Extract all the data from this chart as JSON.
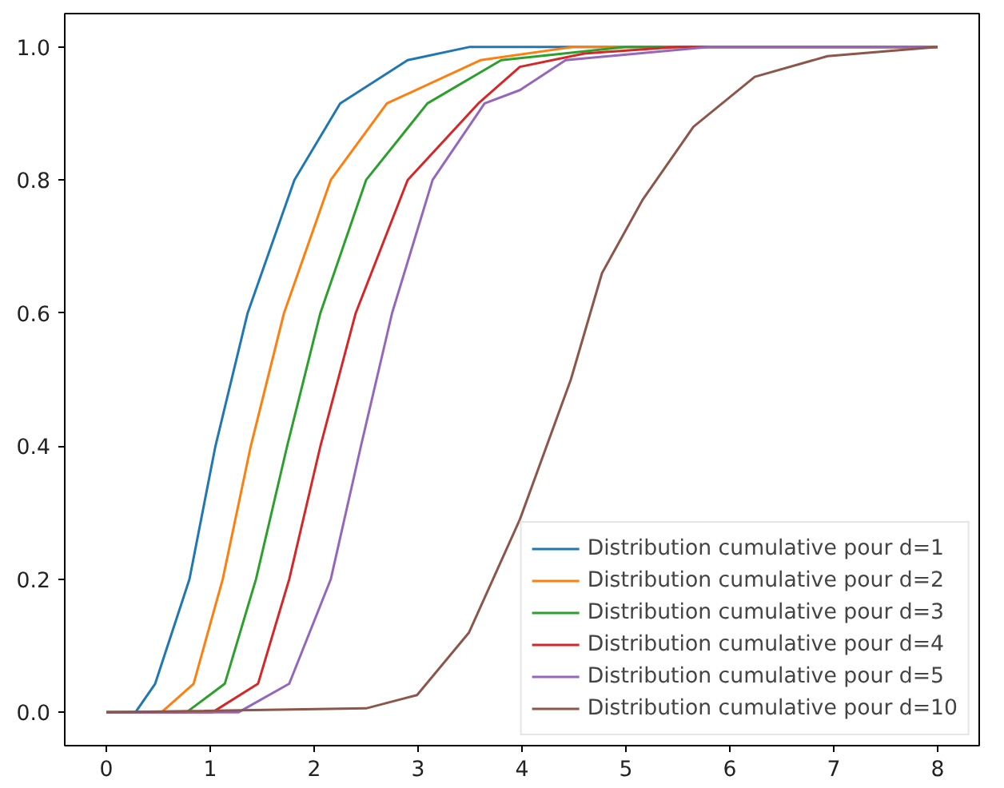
{
  "chart_data": {
    "type": "line",
    "xlim": [
      -0.4,
      8.4
    ],
    "ylim": [
      -0.05,
      1.05
    ],
    "xticks": [
      0,
      1,
      2,
      3,
      4,
      5,
      6,
      7,
      8
    ],
    "yticks": [
      {
        "value": 0,
        "label": "0.0"
      },
      {
        "value": 0.2,
        "label": "0.2"
      },
      {
        "value": 0.4,
        "label": "0.4"
      },
      {
        "value": 0.6,
        "label": "0.6"
      },
      {
        "value": 0.8,
        "label": "0.8"
      },
      {
        "value": 1.0,
        "label": "1.0"
      }
    ],
    "grid": false,
    "legend": "bottom right",
    "line_style": "solid",
    "series": [
      {
        "name": "Distribution cumulative pour d=1",
        "color": "#1f77b4",
        "x": [
          0,
          0.28,
          0.47,
          0.8,
          1.05,
          1.36,
          1.81,
          2.25,
          2.9,
          3.5,
          8
        ],
        "values": [
          0,
          0,
          0.043,
          0.2,
          0.4,
          0.6,
          0.8,
          0.915,
          0.98,
          1.0,
          1.0
        ]
      },
      {
        "name": "Distribution cumulative pour d=2",
        "color": "#ff7f0e",
        "x": [
          0,
          0.53,
          0.84,
          1.12,
          1.39,
          1.71,
          2.16,
          2.7,
          3.6,
          4.5,
          8
        ],
        "values": [
          0,
          0,
          0.043,
          0.2,
          0.4,
          0.6,
          0.8,
          0.915,
          0.98,
          1.0,
          1.0
        ]
      },
      {
        "name": "Distribution cumulative pour d=3",
        "color": "#2ca02c",
        "x": [
          0,
          0.77,
          1.14,
          1.44,
          1.74,
          2.06,
          2.5,
          3.09,
          3.8,
          5.0,
          8
        ],
        "values": [
          0,
          0,
          0.043,
          0.2,
          0.4,
          0.6,
          0.8,
          0.915,
          0.98,
          1.0,
          1.0
        ]
      },
      {
        "name": "Distribution cumulative pour d=4",
        "color": "#d62728",
        "x": [
          0,
          1.02,
          1.46,
          1.76,
          2.06,
          2.4,
          2.9,
          3.58,
          3.98,
          4.6,
          5.5,
          8
        ],
        "values": [
          0,
          0,
          0.043,
          0.2,
          0.4,
          0.6,
          0.8,
          0.915,
          0.97,
          0.99,
          1.0,
          1.0
        ]
      },
      {
        "name": "Distribution cumulative pour d=5",
        "color": "#9467bd",
        "x": [
          0,
          1.27,
          1.76,
          2.16,
          2.45,
          2.75,
          3.14,
          3.64,
          3.98,
          4.42,
          5.8,
          8
        ],
        "values": [
          0,
          0,
          0.043,
          0.2,
          0.4,
          0.6,
          0.8,
          0.915,
          0.935,
          0.98,
          1.0,
          1.0
        ]
      },
      {
        "name": "Distribution cumulative pour d=10",
        "color": "#8c564b",
        "x": [
          0,
          2.5,
          2.99,
          3.49,
          3.98,
          4.47,
          4.77,
          5.16,
          5.65,
          6.24,
          6.94,
          8
        ],
        "values": [
          0,
          0.006,
          0.026,
          0.12,
          0.29,
          0.5,
          0.66,
          0.77,
          0.88,
          0.955,
          0.986,
          1.0
        ]
      }
    ]
  }
}
